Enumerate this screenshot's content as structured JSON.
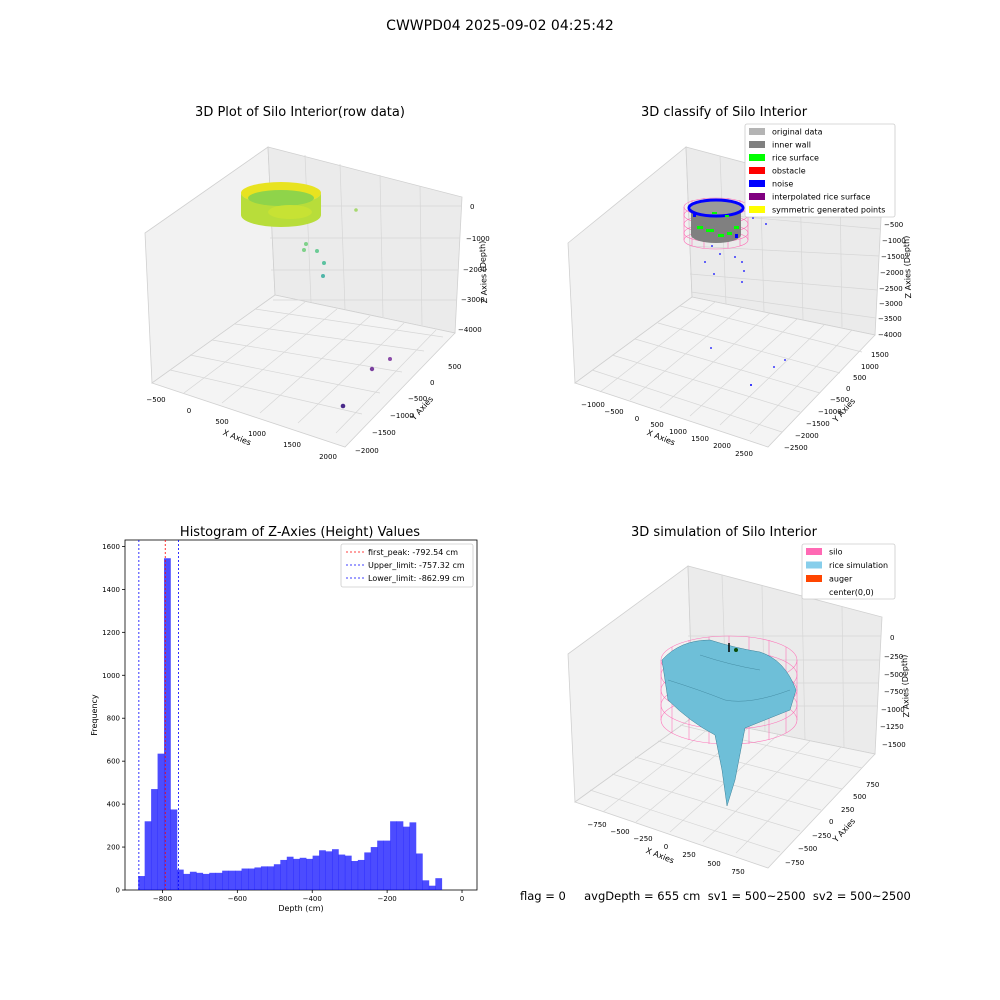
{
  "figure": {
    "suptitle": "CWWPD04 2025-09-02 04:25:42",
    "status_text": "flag = 0     avgDepth = 655 cm  sv1 = 500~2500  sv2 = 500~2500"
  },
  "panels": {
    "raw": {
      "title": "3D Plot of Silo Interior(row data)",
      "xlabel": "X Axies",
      "ylabel": "Y Axies",
      "zlabel": "Z Axies (Depth)",
      "xticks": [
        "−500",
        "0",
        "500",
        "1000",
        "1500",
        "2000"
      ],
      "yticks": [
        "500",
        "0",
        "−500",
        "−1000",
        "−1500",
        "−2000"
      ],
      "zticks": [
        "0",
        "−1000",
        "−2000",
        "−3000",
        "−4000"
      ]
    },
    "classify": {
      "title": "3D classify of Silo Interior",
      "xlabel": "X Axies",
      "ylabel": "Y Axies",
      "zlabel": "Z Axies (Depth)",
      "xticks": [
        "−1000",
        "−500",
        "0",
        "500",
        "1000",
        "1500",
        "2000",
        "2500"
      ],
      "yticks": [
        "1500",
        "1000",
        "500",
        "0",
        "−500",
        "−1000",
        "−1500",
        "−2000",
        "−2500"
      ],
      "zticks": [
        "−500",
        "−1000",
        "−1500",
        "−2000",
        "−2500",
        "−3000",
        "−3500",
        "−4000"
      ],
      "legend": [
        {
          "label": "original data",
          "color": "#b4b4b4"
        },
        {
          "label": "inner wall",
          "color": "#808080"
        },
        {
          "label": "rice surface",
          "color": "#00ff00"
        },
        {
          "label": "obstacle",
          "color": "#ff0000"
        },
        {
          "label": "noise",
          "color": "#0000ff"
        },
        {
          "label": "interpolated rice surface",
          "color": "#800080"
        },
        {
          "label": "symmetric generated points",
          "color": "#ffff00"
        }
      ]
    },
    "simulation": {
      "title": "3D simulation of Silo Interior",
      "xlabel": "X Axies",
      "ylabel": "Y Axies",
      "zlabel": "Z Axies (Depth)",
      "xticks": [
        "−750",
        "−500",
        "−250",
        "0",
        "250",
        "500",
        "750"
      ],
      "yticks": [
        "750",
        "500",
        "250",
        "0",
        "−250",
        "−500",
        "−750"
      ],
      "zticks": [
        "0",
        "−250",
        "−500",
        "−750",
        "−1000",
        "−1250",
        "−1500"
      ],
      "legend": [
        {
          "label": "silo",
          "color": "#ff69b4"
        },
        {
          "label": "rice simulation",
          "color": "#87ceeb"
        },
        {
          "label": "auger",
          "color": "#ff4500"
        },
        {
          "label": "center(0,0)",
          "color": ""
        }
      ]
    }
  },
  "chart_data": [
    {
      "type": "bar",
      "title": "Histogram of Z-Axies (Height) Values",
      "xlabel": "Depth (cm)",
      "ylabel": "Frequency",
      "xlim": [
        -900,
        40
      ],
      "ylim": [
        0,
        1630
      ],
      "xticks": [
        -800,
        -600,
        -400,
        -200,
        0
      ],
      "yticks": [
        0,
        200,
        400,
        600,
        800,
        1000,
        1200,
        1400,
        1600
      ],
      "color": "#0000ff",
      "bin_width": 17.25,
      "bin_start": -882,
      "values": [
        0,
        65,
        320,
        470,
        635,
        1545,
        375,
        95,
        75,
        85,
        80,
        75,
        80,
        80,
        90,
        90,
        90,
        100,
        100,
        105,
        110,
        110,
        120,
        140,
        155,
        145,
        150,
        145,
        160,
        185,
        180,
        190,
        165,
        160,
        135,
        140,
        175,
        200,
        230,
        230,
        320,
        320,
        295,
        315,
        170,
        45,
        20,
        55
      ],
      "vlines": [
        {
          "label": "first_peak: -792.54 cm",
          "x": -792.54,
          "color": "#ff0000"
        },
        {
          "label": "Upper_limit: -757.32 cm",
          "x": -757.32,
          "color": "#0000ff"
        },
        {
          "label": "Lower_limit: -862.99 cm",
          "x": -862.99,
          "color": "#0000ff"
        }
      ]
    }
  ]
}
